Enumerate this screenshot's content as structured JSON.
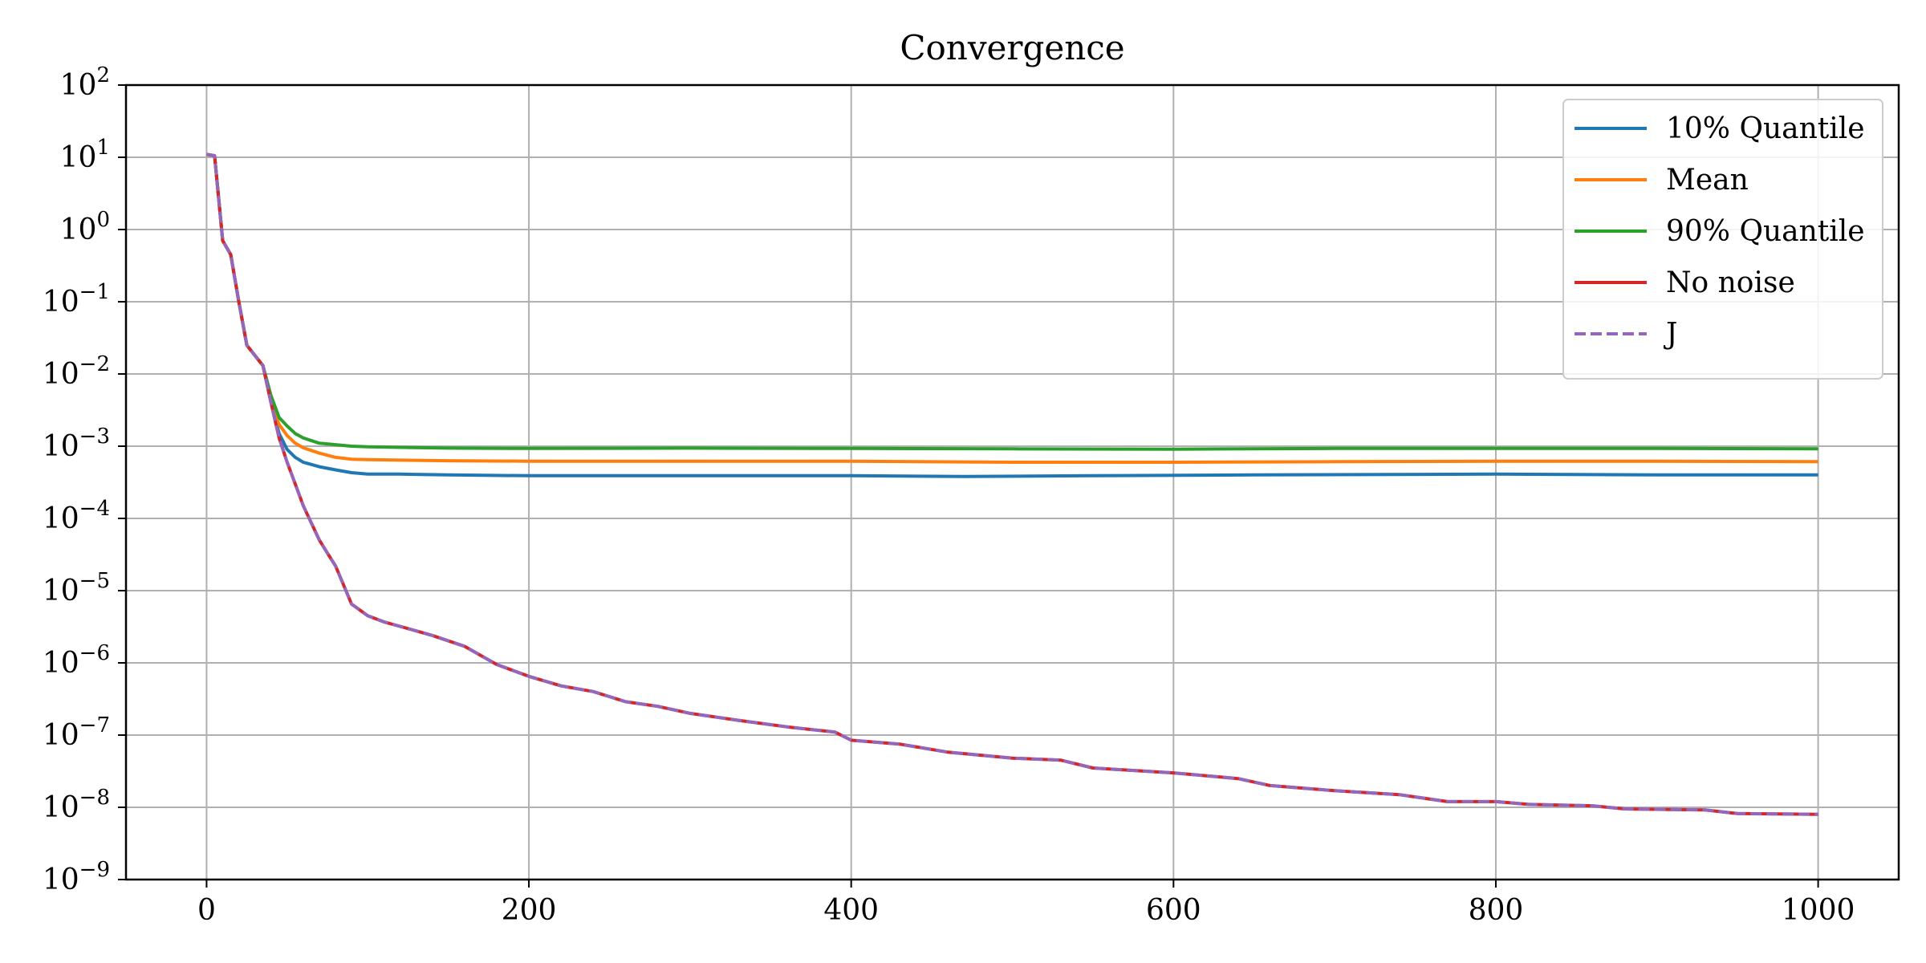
{
  "chart_data": {
    "type": "line",
    "title": "Convergence",
    "xlabel": "",
    "ylabel": "",
    "y_scale": "log",
    "xlim": [
      -50,
      1050
    ],
    "ylim": [
      1e-09,
      100
    ],
    "x_ticks": [
      0,
      200,
      400,
      600,
      800,
      1000
    ],
    "x_tick_labels": [
      "0",
      "200",
      "400",
      "600",
      "800",
      "1000"
    ],
    "y_tick_exponents": [
      -9,
      -8,
      -7,
      -6,
      -5,
      -4,
      -3,
      -2,
      -1,
      0,
      1,
      2
    ],
    "y_tick_base": "10",
    "grid": true,
    "legend_position": "top-right",
    "series": [
      {
        "name": "10% Quantile",
        "color": "#1f77b4",
        "dash": "solid",
        "points": [
          [
            0,
            11
          ],
          [
            5,
            10.5
          ],
          [
            10,
            0.7
          ],
          [
            15,
            0.45
          ],
          [
            20,
            0.1
          ],
          [
            25,
            0.025
          ],
          [
            30,
            0.018
          ],
          [
            35,
            0.013
          ],
          [
            40,
            0.004
          ],
          [
            45,
            0.0015
          ],
          [
            50,
            0.0009
          ],
          [
            55,
            0.0007
          ],
          [
            60,
            0.0006
          ],
          [
            70,
            0.00052
          ],
          [
            80,
            0.00047
          ],
          [
            90,
            0.00043
          ],
          [
            100,
            0.00041
          ],
          [
            120,
            0.00041
          ],
          [
            150,
            0.0004
          ],
          [
            200,
            0.00039
          ],
          [
            300,
            0.00039
          ],
          [
            400,
            0.00039
          ],
          [
            470,
            0.00038
          ],
          [
            550,
            0.00039
          ],
          [
            650,
            0.0004
          ],
          [
            800,
            0.00041
          ],
          [
            900,
            0.0004
          ],
          [
            1000,
            0.0004
          ]
        ]
      },
      {
        "name": "Mean",
        "color": "#ff7f0e",
        "dash": "solid",
        "points": [
          [
            0,
            11
          ],
          [
            5,
            10.5
          ],
          [
            10,
            0.7
          ],
          [
            15,
            0.45
          ],
          [
            20,
            0.1
          ],
          [
            25,
            0.025
          ],
          [
            30,
            0.018
          ],
          [
            35,
            0.013
          ],
          [
            40,
            0.004
          ],
          [
            45,
            0.002
          ],
          [
            50,
            0.0014
          ],
          [
            55,
            0.0011
          ],
          [
            60,
            0.00095
          ],
          [
            70,
            0.0008
          ],
          [
            80,
            0.0007
          ],
          [
            90,
            0.00066
          ],
          [
            100,
            0.00065
          ],
          [
            150,
            0.00063
          ],
          [
            200,
            0.00062
          ],
          [
            300,
            0.00062
          ],
          [
            400,
            0.00062
          ],
          [
            500,
            0.0006
          ],
          [
            600,
            0.0006
          ],
          [
            700,
            0.00061
          ],
          [
            800,
            0.00062
          ],
          [
            900,
            0.00062
          ],
          [
            1000,
            0.00061
          ]
        ]
      },
      {
        "name": "90% Quantile",
        "color": "#2ca02c",
        "dash": "solid",
        "points": [
          [
            0,
            11
          ],
          [
            5,
            10.5
          ],
          [
            10,
            0.7
          ],
          [
            15,
            0.45
          ],
          [
            20,
            0.1
          ],
          [
            25,
            0.025
          ],
          [
            30,
            0.018
          ],
          [
            35,
            0.013
          ],
          [
            40,
            0.005
          ],
          [
            45,
            0.0025
          ],
          [
            50,
            0.0019
          ],
          [
            55,
            0.0015
          ],
          [
            60,
            0.0013
          ],
          [
            70,
            0.0011
          ],
          [
            80,
            0.00105
          ],
          [
            90,
            0.001
          ],
          [
            100,
            0.00098
          ],
          [
            150,
            0.00094
          ],
          [
            200,
            0.00093
          ],
          [
            300,
            0.00094
          ],
          [
            400,
            0.00093
          ],
          [
            500,
            0.00092
          ],
          [
            600,
            0.00091
          ],
          [
            700,
            0.00093
          ],
          [
            800,
            0.00093
          ],
          [
            900,
            0.00093
          ],
          [
            1000,
            0.00092
          ]
        ]
      },
      {
        "name": "No noise",
        "color": "#d62728",
        "dash": "solid",
        "points": [
          [
            0,
            11
          ],
          [
            5,
            10.5
          ],
          [
            10,
            0.7
          ],
          [
            15,
            0.45
          ],
          [
            20,
            0.1
          ],
          [
            25,
            0.025
          ],
          [
            30,
            0.018
          ],
          [
            35,
            0.013
          ],
          [
            40,
            0.004
          ],
          [
            45,
            0.0013
          ],
          [
            50,
            0.0006
          ],
          [
            55,
            0.0003
          ],
          [
            60,
            0.00015
          ],
          [
            70,
            5e-05
          ],
          [
            75,
            3.3e-05
          ],
          [
            80,
            2.2e-05
          ],
          [
            85,
            1.2e-05
          ],
          [
            90,
            6.5e-06
          ],
          [
            100,
            4.5e-06
          ],
          [
            110,
            3.7e-06
          ],
          [
            120,
            3.2e-06
          ],
          [
            140,
            2.4e-06
          ],
          [
            160,
            1.7e-06
          ],
          [
            180,
            9.5e-07
          ],
          [
            200,
            6.5e-07
          ],
          [
            220,
            4.8e-07
          ],
          [
            240,
            4e-07
          ],
          [
            260,
            2.9e-07
          ],
          [
            280,
            2.5e-07
          ],
          [
            300,
            2e-07
          ],
          [
            330,
            1.6e-07
          ],
          [
            360,
            1.3e-07
          ],
          [
            390,
            1.1e-07
          ],
          [
            400,
            8.5e-08
          ],
          [
            430,
            7.5e-08
          ],
          [
            460,
            5.8e-08
          ],
          [
            500,
            4.8e-08
          ],
          [
            530,
            4.5e-08
          ],
          [
            550,
            3.5e-08
          ],
          [
            600,
            3e-08
          ],
          [
            640,
            2.5e-08
          ],
          [
            660,
            2e-08
          ],
          [
            700,
            1.7e-08
          ],
          [
            740,
            1.5e-08
          ],
          [
            770,
            1.2e-08
          ],
          [
            800,
            1.2e-08
          ],
          [
            820,
            1.1e-08
          ],
          [
            860,
            1.05e-08
          ],
          [
            880,
            9.5e-09
          ],
          [
            930,
            9.2e-09
          ],
          [
            950,
            8.2e-09
          ],
          [
            1000,
            8e-09
          ]
        ]
      },
      {
        "name": "J",
        "color": "#9467bd",
        "dash": "dashed",
        "points": [
          [
            0,
            11
          ],
          [
            5,
            10.5
          ],
          [
            10,
            0.7
          ],
          [
            15,
            0.45
          ],
          [
            20,
            0.1
          ],
          [
            25,
            0.025
          ],
          [
            30,
            0.018
          ],
          [
            35,
            0.013
          ],
          [
            40,
            0.004
          ],
          [
            45,
            0.0013
          ],
          [
            50,
            0.0006
          ],
          [
            55,
            0.0003
          ],
          [
            60,
            0.00015
          ],
          [
            70,
            5e-05
          ],
          [
            75,
            3.3e-05
          ],
          [
            80,
            2.2e-05
          ],
          [
            85,
            1.2e-05
          ],
          [
            90,
            6.5e-06
          ],
          [
            100,
            4.5e-06
          ],
          [
            110,
            3.7e-06
          ],
          [
            120,
            3.2e-06
          ],
          [
            140,
            2.4e-06
          ],
          [
            160,
            1.7e-06
          ],
          [
            180,
            9.5e-07
          ],
          [
            200,
            6.5e-07
          ],
          [
            220,
            4.8e-07
          ],
          [
            240,
            4e-07
          ],
          [
            260,
            2.9e-07
          ],
          [
            280,
            2.5e-07
          ],
          [
            300,
            2e-07
          ],
          [
            330,
            1.6e-07
          ],
          [
            360,
            1.3e-07
          ],
          [
            390,
            1.1e-07
          ],
          [
            400,
            8.5e-08
          ],
          [
            430,
            7.5e-08
          ],
          [
            460,
            5.8e-08
          ],
          [
            500,
            4.8e-08
          ],
          [
            530,
            4.5e-08
          ],
          [
            550,
            3.5e-08
          ],
          [
            600,
            3e-08
          ],
          [
            640,
            2.5e-08
          ],
          [
            660,
            2e-08
          ],
          [
            700,
            1.7e-08
          ],
          [
            740,
            1.5e-08
          ],
          [
            770,
            1.2e-08
          ],
          [
            800,
            1.2e-08
          ],
          [
            820,
            1.1e-08
          ],
          [
            860,
            1.05e-08
          ],
          [
            880,
            9.5e-09
          ],
          [
            930,
            9.2e-09
          ],
          [
            950,
            8.2e-09
          ],
          [
            1000,
            8e-09
          ]
        ]
      }
    ]
  }
}
